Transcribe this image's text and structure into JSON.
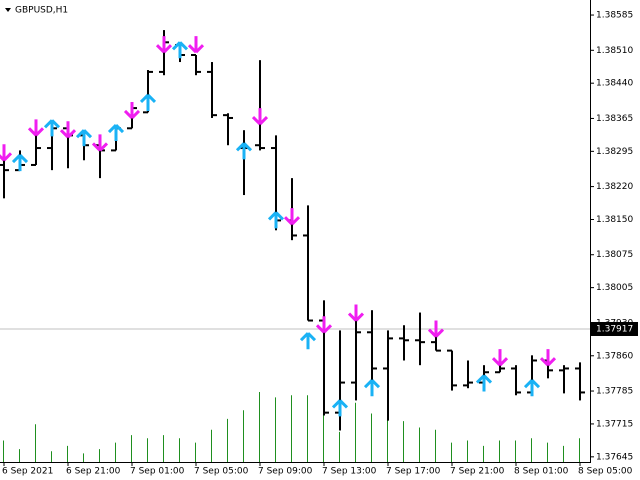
{
  "chart_data": {
    "type": "ohlc",
    "title": "GBPUSD,H1",
    "open": [
      1.38266,
      1.38255,
      1.38266,
      1.38302,
      1.38344,
      1.38329,
      1.38308,
      1.38297,
      1.38344,
      1.38378,
      1.38464,
      1.38521,
      1.385,
      1.38464,
      1.38372,
      1.38302,
      1.38308,
      1.38302,
      1.38148,
      1.38116,
      1.37935,
      1.37739,
      1.37803,
      1.3791,
      1.37833,
      1.37897,
      1.37893,
      1.37889,
      1.37871,
      1.37797,
      1.37803,
      1.37825,
      1.37833,
      1.37782,
      1.3785,
      1.37829,
      1.37833
    ],
    "high": [
      1.38287,
      1.38297,
      1.38344,
      1.38361,
      1.38351,
      1.3834,
      1.38308,
      1.38351,
      1.38393,
      1.38468,
      1.38553,
      1.38527,
      1.385,
      1.38485,
      1.38376,
      1.3834,
      1.38489,
      1.38329,
      1.38238,
      1.3818,
      1.37978,
      1.37914,
      1.37935,
      1.37957,
      1.37914,
      1.37925,
      1.37952,
      1.37914,
      1.37871,
      1.3785,
      1.3784,
      1.37846,
      1.3784,
      1.37861,
      1.3785,
      1.3784,
      1.37846
    ],
    "low": [
      1.38195,
      1.38255,
      1.38266,
      1.38255,
      1.38259,
      1.38276,
      1.38238,
      1.38297,
      1.38344,
      1.38378,
      1.38457,
      1.38485,
      1.38457,
      1.38366,
      1.38308,
      1.38202,
      1.38297,
      1.38127,
      1.38106,
      1.37935,
      1.37733,
      1.37701,
      1.37765,
      1.37776,
      1.37722,
      1.3785,
      1.3784,
      1.37871,
      1.37786,
      1.37791,
      1.37797,
      1.37825,
      1.37776,
      1.37776,
      1.37812,
      1.3778,
      1.37765
    ],
    "close": [
      1.38255,
      1.38266,
      1.38302,
      1.38344,
      1.38329,
      1.38308,
      1.38297,
      1.38344,
      1.38387,
      1.38464,
      1.38527,
      1.385,
      1.38464,
      1.38372,
      1.38366,
      1.38302,
      1.38302,
      1.38148,
      1.38116,
      1.37935,
      1.37739,
      1.37803,
      1.3791,
      1.37833,
      1.37897,
      1.37893,
      1.37889,
      1.37871,
      1.37797,
      1.37803,
      1.37825,
      1.37833,
      1.37782,
      1.3785,
      1.37829,
      1.37833,
      1.37782
    ],
    "up_arrows": {
      "color": "#1ab2f5",
      "index": [
        1,
        3,
        5,
        7,
        9,
        11,
        15,
        17,
        19,
        21,
        23,
        30,
        33
      ],
      "values": [
        1.38287,
        1.38361,
        1.3834,
        1.38351,
        1.38415,
        1.38527,
        1.38312,
        1.38165,
        1.37908,
        1.37765,
        1.37808,
        1.37818,
        1.37808
      ]
    },
    "down_arrows": {
      "color": "#f01ef0",
      "index": [
        0,
        2,
        4,
        6,
        8,
        10,
        12,
        16,
        18,
        20,
        22,
        27,
        31,
        34
      ],
      "values": [
        1.38276,
        1.38329,
        1.38325,
        1.38297,
        1.38366,
        1.38506,
        1.38506,
        1.38353,
        1.3814,
        1.3791,
        1.37935,
        1.37901,
        1.3784,
        1.3784
      ]
    },
    "volume": {
      "color": "#1f8f1f",
      "values": [
        20,
        12,
        35,
        10,
        15,
        8,
        12,
        18,
        25,
        22,
        25,
        22,
        18,
        30,
        40,
        48,
        65,
        60,
        62,
        62,
        52,
        28,
        55,
        45,
        50,
        38,
        32,
        30,
        18,
        20,
        15,
        20,
        20,
        22,
        18,
        15,
        22
      ]
    },
    "last_price": {
      "value": 1.37917,
      "label": "1.37917"
    },
    "ylim": [
      1.37634,
      1.38617
    ],
    "yticks": [
      1.38585,
      {
        "value": 1.3851,
        "label": "1.38510"
      },
      {
        "value": 1.3844,
        "label": "1.38440"
      },
      1.38365,
      1.38295,
      {
        "value": 1.3822,
        "label": "1.38220"
      },
      {
        "value": 1.3815,
        "label": "1.38150"
      },
      1.38075,
      1.38005,
      {
        "value": 1.3793,
        "label": "1.37930"
      },
      {
        "value": 1.3786,
        "label": "1.37860"
      },
      1.37785,
      1.37715,
      1.37645
    ],
    "xticks": [
      {
        "value": 0,
        "label": "6 Sep 2021"
      },
      {
        "value": 4,
        "label": "6 Sep 21:00"
      },
      {
        "value": 8,
        "label": "7 Sep 01:00"
      },
      {
        "value": 12,
        "label": "7 Sep 05:00"
      },
      {
        "value": 16,
        "label": "7 Sep 09:00"
      },
      {
        "value": 20,
        "label": "7 Sep 13:00"
      },
      {
        "value": 24,
        "label": "7 Sep 17:00"
      },
      {
        "value": 28,
        "label": "7 Sep 21:00"
      },
      {
        "value": 32,
        "label": "8 Sep 01:00"
      },
      {
        "value": 36,
        "label": "8 Sep 05:00"
      }
    ]
  }
}
